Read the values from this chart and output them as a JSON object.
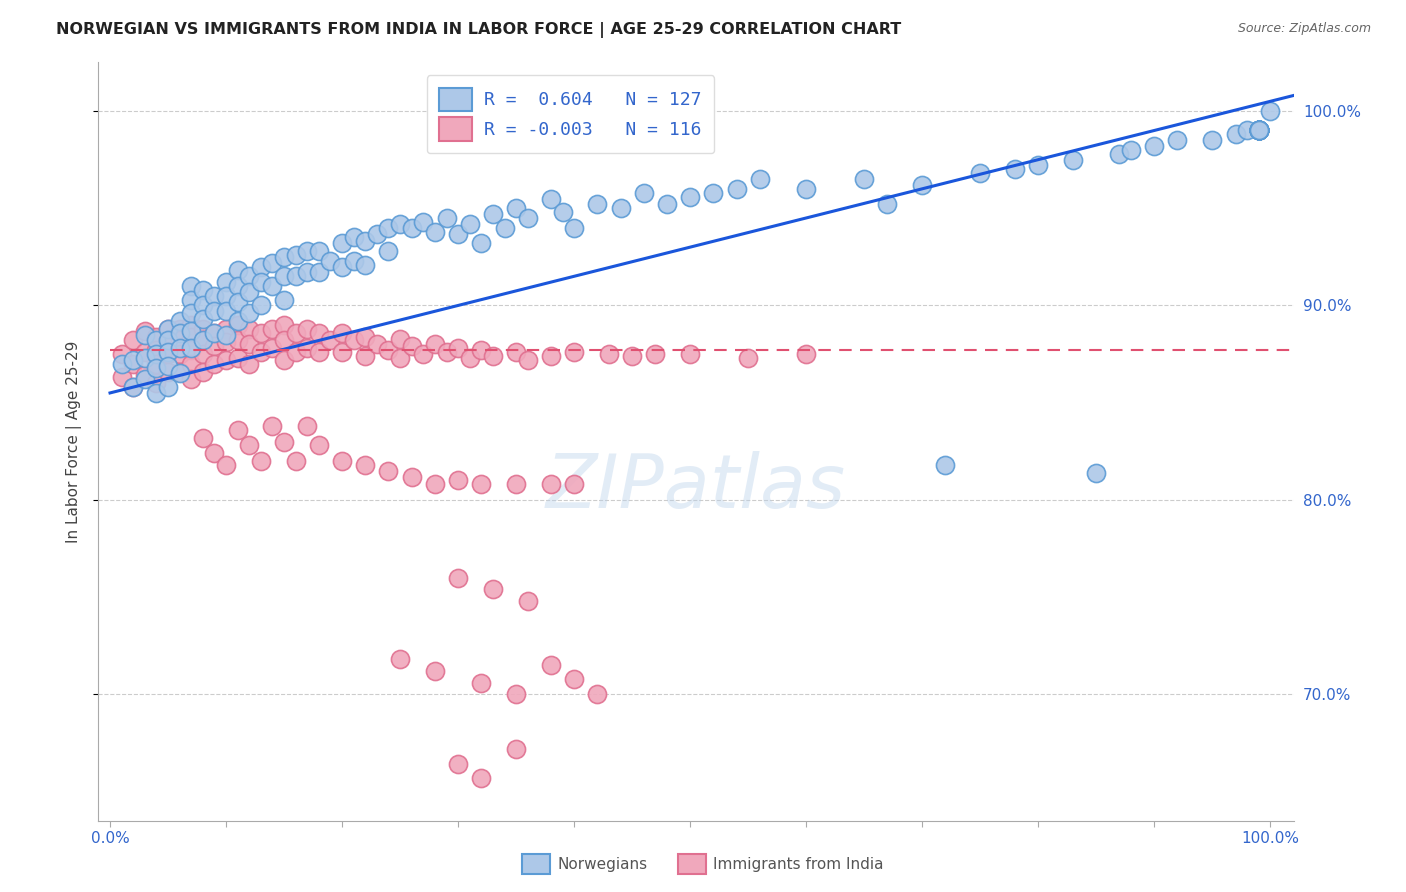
{
  "title": "NORWEGIAN VS IMMIGRANTS FROM INDIA IN LABOR FORCE | AGE 25-29 CORRELATION CHART",
  "source": "Source: ZipAtlas.com",
  "ylabel": "In Labor Force | Age 25-29",
  "xlim": [
    -0.01,
    1.02
  ],
  "ylim": [
    0.635,
    1.025
  ],
  "yticks": [
    0.7,
    0.8,
    0.9,
    1.0
  ],
  "ytick_labels": [
    "70.0%",
    "80.0%",
    "90.0%",
    "100.0%"
  ],
  "xtick_labels": [
    "0.0%",
    "",
    "",
    "",
    "",
    "",
    "",
    "",
    "",
    "",
    "100.0%"
  ],
  "blue_R": 0.604,
  "blue_N": 127,
  "pink_R": -0.003,
  "pink_N": 116,
  "blue_face": "#adc8e8",
  "pink_face": "#f0a8bc",
  "blue_edge": "#5b9bd5",
  "pink_edge": "#e07090",
  "trend_blue": "#1a56db",
  "trend_pink": "#e05070",
  "watermark": "ZIPatlas",
  "legend_label_blue": "Norwegians",
  "legend_label_pink": "Immigrants from India",
  "blue_trend_x0": 0.0,
  "blue_trend_y0": 0.855,
  "blue_trend_x1": 1.0,
  "blue_trend_y1": 1.005,
  "pink_trend_y": 0.877,
  "blue_x": [
    0.01,
    0.02,
    0.02,
    0.03,
    0.03,
    0.03,
    0.04,
    0.04,
    0.04,
    0.04,
    0.05,
    0.05,
    0.05,
    0.05,
    0.05,
    0.06,
    0.06,
    0.06,
    0.06,
    0.07,
    0.07,
    0.07,
    0.07,
    0.07,
    0.08,
    0.08,
    0.08,
    0.08,
    0.09,
    0.09,
    0.09,
    0.1,
    0.1,
    0.1,
    0.1,
    0.11,
    0.11,
    0.11,
    0.11,
    0.12,
    0.12,
    0.12,
    0.13,
    0.13,
    0.13,
    0.14,
    0.14,
    0.15,
    0.15,
    0.15,
    0.16,
    0.16,
    0.17,
    0.17,
    0.18,
    0.18,
    0.19,
    0.2,
    0.2,
    0.21,
    0.21,
    0.22,
    0.22,
    0.23,
    0.24,
    0.24,
    0.25,
    0.26,
    0.27,
    0.28,
    0.29,
    0.3,
    0.31,
    0.32,
    0.33,
    0.34,
    0.35,
    0.36,
    0.38,
    0.39,
    0.4,
    0.42,
    0.44,
    0.46,
    0.48,
    0.5,
    0.52,
    0.54,
    0.56,
    0.6,
    0.65,
    0.67,
    0.7,
    0.72,
    0.75,
    0.78,
    0.8,
    0.83,
    0.85,
    0.87,
    0.88,
    0.9,
    0.92,
    0.95,
    0.97,
    0.98,
    0.99,
    0.99,
    0.99,
    0.99,
    0.99,
    0.99,
    0.99,
    0.99,
    0.99,
    0.99,
    0.99,
    0.99,
    0.99,
    0.99,
    0.99,
    0.99,
    0.99,
    0.99,
    0.99,
    0.99,
    1.0
  ],
  "blue_y": [
    0.87,
    0.872,
    0.858,
    0.885,
    0.873,
    0.862,
    0.882,
    0.875,
    0.868,
    0.855,
    0.888,
    0.882,
    0.876,
    0.869,
    0.858,
    0.892,
    0.886,
    0.878,
    0.865,
    0.91,
    0.903,
    0.896,
    0.887,
    0.878,
    0.908,
    0.9,
    0.893,
    0.882,
    0.905,
    0.897,
    0.886,
    0.912,
    0.905,
    0.897,
    0.885,
    0.918,
    0.91,
    0.902,
    0.892,
    0.915,
    0.907,
    0.896,
    0.92,
    0.912,
    0.9,
    0.922,
    0.91,
    0.925,
    0.915,
    0.903,
    0.926,
    0.915,
    0.928,
    0.917,
    0.928,
    0.917,
    0.923,
    0.932,
    0.92,
    0.935,
    0.923,
    0.933,
    0.921,
    0.937,
    0.94,
    0.928,
    0.942,
    0.94,
    0.943,
    0.938,
    0.945,
    0.937,
    0.942,
    0.932,
    0.947,
    0.94,
    0.95,
    0.945,
    0.955,
    0.948,
    0.94,
    0.952,
    0.95,
    0.958,
    0.952,
    0.956,
    0.958,
    0.96,
    0.965,
    0.96,
    0.965,
    0.952,
    0.962,
    0.818,
    0.968,
    0.97,
    0.972,
    0.975,
    0.814,
    0.978,
    0.98,
    0.982,
    0.985,
    0.985,
    0.988,
    0.99,
    0.99,
    0.99,
    0.99,
    0.99,
    0.99,
    0.99,
    0.99,
    0.99,
    0.99,
    0.99,
    0.99,
    0.99,
    0.99,
    0.99,
    0.99,
    0.99,
    0.99,
    0.99,
    0.99,
    0.99,
    1.0
  ],
  "pink_x": [
    0.01,
    0.01,
    0.02,
    0.02,
    0.02,
    0.03,
    0.03,
    0.03,
    0.04,
    0.04,
    0.04,
    0.04,
    0.05,
    0.05,
    0.05,
    0.05,
    0.06,
    0.06,
    0.06,
    0.06,
    0.07,
    0.07,
    0.07,
    0.07,
    0.07,
    0.08,
    0.08,
    0.08,
    0.08,
    0.09,
    0.09,
    0.09,
    0.1,
    0.1,
    0.1,
    0.11,
    0.11,
    0.11,
    0.12,
    0.12,
    0.12,
    0.13,
    0.13,
    0.14,
    0.14,
    0.15,
    0.15,
    0.15,
    0.16,
    0.16,
    0.17,
    0.17,
    0.18,
    0.18,
    0.19,
    0.2,
    0.2,
    0.21,
    0.22,
    0.22,
    0.23,
    0.24,
    0.25,
    0.25,
    0.26,
    0.27,
    0.28,
    0.29,
    0.3,
    0.31,
    0.32,
    0.33,
    0.35,
    0.36,
    0.38,
    0.4,
    0.43,
    0.45,
    0.47,
    0.5,
    0.55,
    0.6,
    0.08,
    0.09,
    0.1,
    0.11,
    0.12,
    0.13,
    0.14,
    0.15,
    0.16,
    0.17,
    0.18,
    0.2,
    0.22,
    0.24,
    0.26,
    0.28,
    0.3,
    0.32,
    0.35,
    0.38,
    0.4,
    0.3,
    0.33,
    0.36,
    0.25,
    0.28,
    0.32,
    0.35,
    0.38,
    0.4,
    0.42,
    0.35,
    0.3,
    0.32
  ],
  "pink_y": [
    0.875,
    0.863,
    0.882,
    0.87,
    0.858,
    0.887,
    0.876,
    0.864,
    0.884,
    0.877,
    0.87,
    0.86,
    0.888,
    0.882,
    0.875,
    0.866,
    0.888,
    0.882,
    0.875,
    0.866,
    0.89,
    0.884,
    0.877,
    0.87,
    0.862,
    0.888,
    0.882,
    0.875,
    0.866,
    0.886,
    0.879,
    0.87,
    0.888,
    0.881,
    0.872,
    0.89,
    0.882,
    0.873,
    0.888,
    0.88,
    0.87,
    0.886,
    0.876,
    0.888,
    0.878,
    0.89,
    0.882,
    0.872,
    0.886,
    0.876,
    0.888,
    0.878,
    0.886,
    0.876,
    0.882,
    0.886,
    0.876,
    0.882,
    0.884,
    0.874,
    0.88,
    0.877,
    0.883,
    0.873,
    0.879,
    0.875,
    0.88,
    0.876,
    0.878,
    0.873,
    0.877,
    0.874,
    0.876,
    0.872,
    0.874,
    0.876,
    0.875,
    0.874,
    0.875,
    0.875,
    0.873,
    0.875,
    0.832,
    0.824,
    0.818,
    0.836,
    0.828,
    0.82,
    0.838,
    0.83,
    0.82,
    0.838,
    0.828,
    0.82,
    0.818,
    0.815,
    0.812,
    0.808,
    0.81,
    0.808,
    0.808,
    0.808,
    0.808,
    0.76,
    0.754,
    0.748,
    0.718,
    0.712,
    0.706,
    0.7,
    0.715,
    0.708,
    0.7,
    0.672,
    0.664,
    0.657
  ]
}
